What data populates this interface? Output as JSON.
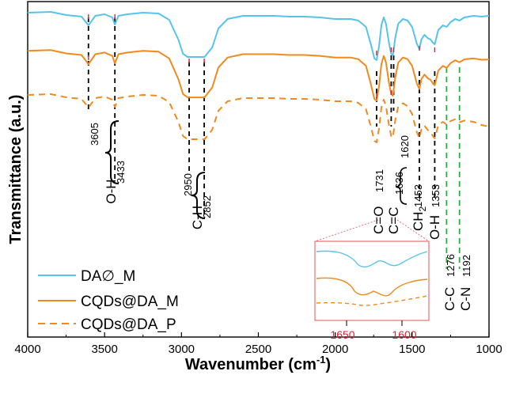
{
  "chart_data": {
    "type": "line",
    "xlabel": "Wavenumber (cm",
    "xlabel_sup": "-1",
    "xlabel_end": ")",
    "ylabel": "Transmittance (a.u.)",
    "xlim": [
      4000,
      1000
    ],
    "xticks": [
      4000,
      3500,
      3000,
      2500,
      2000,
      1500,
      1000
    ],
    "y_axis_ticks_labeled": false,
    "grid": false,
    "legend_position": "bottom-left",
    "series": [
      {
        "name": "DA∅_M",
        "color": "#56c4e8",
        "dash": "solid"
      },
      {
        "name": "CQDs@DA_M",
        "color": "#f08a1e",
        "dash": "solid"
      },
      {
        "name": "CQDs@DA_P",
        "color": "#f08a1e",
        "dash": "dashed"
      }
    ],
    "annotations": {
      "OH_left": "O-H",
      "OH_peaks": [
        "3605",
        "3433"
      ],
      "CH_left": "C-H",
      "CH_peaks": [
        "2950",
        "2852"
      ],
      "CO_text": "C=O",
      "CO_peak": "1731",
      "CC_double_text": "C=C",
      "CC_double_peaks": [
        "1636",
        "1620"
      ],
      "CH2_text": "CH",
      "CH2_sub": "2",
      "CH2_peak": "1453",
      "OH2_text": "O-H",
      "OH2_peak": "1353",
      "CC_text": "C-C",
      "CC_peak": "1276",
      "CN_text": "C-N",
      "CN_peak": "1192",
      "inset_ticks": [
        "1650",
        "1600"
      ]
    },
    "colors": {
      "black_marker_lines": "#000000",
      "green_marker_lines": "#2eaa4a",
      "red_ticks": "#e02030",
      "inset_box": "#e8505a"
    }
  }
}
